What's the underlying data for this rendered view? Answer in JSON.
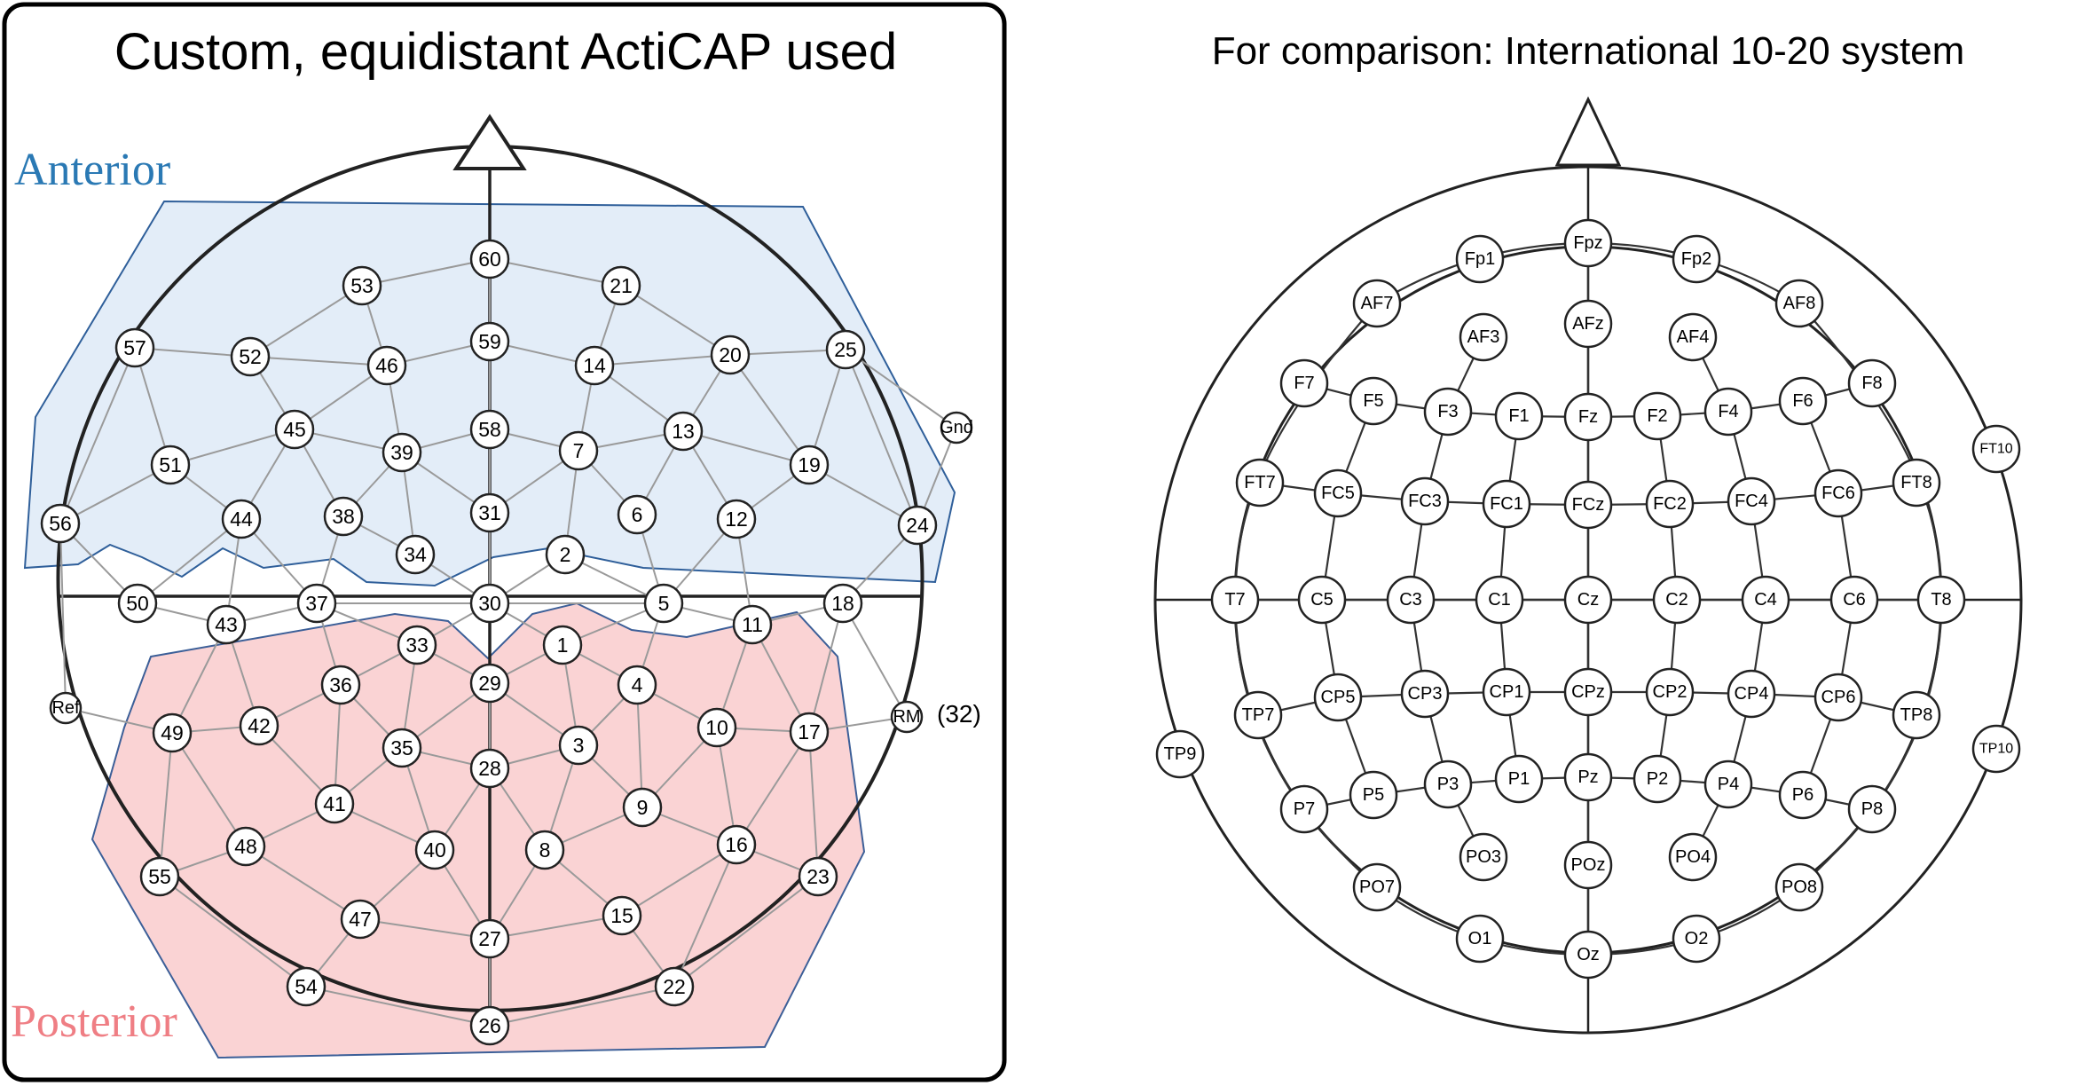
{
  "left_panel": {
    "title": "Custom, equidistant ActiCAP used",
    "anterior_label": "Anterior",
    "posterior_label": "Posterior",
    "rm_channel_note": "(32)",
    "electrodes": [
      {
        "id": "60"
      },
      {
        "id": "53"
      },
      {
        "id": "21"
      },
      {
        "id": "59"
      },
      {
        "id": "57"
      },
      {
        "id": "52"
      },
      {
        "id": "46"
      },
      {
        "id": "14"
      },
      {
        "id": "20"
      },
      {
        "id": "25"
      },
      {
        "id": "45"
      },
      {
        "id": "39"
      },
      {
        "id": "58"
      },
      {
        "id": "7"
      },
      {
        "id": "13"
      },
      {
        "id": "51"
      },
      {
        "id": "19"
      },
      {
        "id": "56"
      },
      {
        "id": "44"
      },
      {
        "id": "38"
      },
      {
        "id": "31"
      },
      {
        "id": "6"
      },
      {
        "id": "12"
      },
      {
        "id": "24"
      },
      {
        "id": "34"
      },
      {
        "id": "2"
      },
      {
        "id": "50"
      },
      {
        "id": "37"
      },
      {
        "id": "30"
      },
      {
        "id": "5"
      },
      {
        "id": "18"
      },
      {
        "id": "43"
      },
      {
        "id": "11"
      },
      {
        "id": "33"
      },
      {
        "id": "1"
      },
      {
        "id": "36"
      },
      {
        "id": "29"
      },
      {
        "id": "4"
      },
      {
        "id": "49"
      },
      {
        "id": "42"
      },
      {
        "id": "10"
      },
      {
        "id": "17"
      },
      {
        "id": "35"
      },
      {
        "id": "3"
      },
      {
        "id": "28"
      },
      {
        "id": "41"
      },
      {
        "id": "9"
      },
      {
        "id": "48"
      },
      {
        "id": "40"
      },
      {
        "id": "8"
      },
      {
        "id": "16"
      },
      {
        "id": "55"
      },
      {
        "id": "23"
      },
      {
        "id": "47"
      },
      {
        "id": "15"
      },
      {
        "id": "27"
      },
      {
        "id": "54"
      },
      {
        "id": "22"
      },
      {
        "id": "26"
      },
      {
        "id": "Gnd"
      },
      {
        "id": "Ref"
      },
      {
        "id": "RM"
      }
    ]
  },
  "right_panel": {
    "title": "For comparison: International 10-20 system",
    "electrodes": [
      {
        "id": "Fpz"
      },
      {
        "id": "Fp1"
      },
      {
        "id": "Fp2"
      },
      {
        "id": "AF7"
      },
      {
        "id": "AF8"
      },
      {
        "id": "AF3"
      },
      {
        "id": "AFz"
      },
      {
        "id": "AF4"
      },
      {
        "id": "F7"
      },
      {
        "id": "F5"
      },
      {
        "id": "F3"
      },
      {
        "id": "F1"
      },
      {
        "id": "Fz"
      },
      {
        "id": "F2"
      },
      {
        "id": "F4"
      },
      {
        "id": "F6"
      },
      {
        "id": "F8"
      },
      {
        "id": "FT7"
      },
      {
        "id": "FC5"
      },
      {
        "id": "FC3"
      },
      {
        "id": "FC1"
      },
      {
        "id": "FCz"
      },
      {
        "id": "FC2"
      },
      {
        "id": "FC4"
      },
      {
        "id": "FC6"
      },
      {
        "id": "FT8"
      },
      {
        "id": "FT10"
      },
      {
        "id": "T7"
      },
      {
        "id": "C5"
      },
      {
        "id": "C3"
      },
      {
        "id": "C1"
      },
      {
        "id": "Cz"
      },
      {
        "id": "C2"
      },
      {
        "id": "C4"
      },
      {
        "id": "C6"
      },
      {
        "id": "T8"
      },
      {
        "id": "TP7"
      },
      {
        "id": "CP5"
      },
      {
        "id": "CP3"
      },
      {
        "id": "CP1"
      },
      {
        "id": "CPz"
      },
      {
        "id": "CP2"
      },
      {
        "id": "CP4"
      },
      {
        "id": "CP6"
      },
      {
        "id": "TP8"
      },
      {
        "id": "TP9"
      },
      {
        "id": "TP10"
      },
      {
        "id": "P7"
      },
      {
        "id": "P5"
      },
      {
        "id": "P3"
      },
      {
        "id": "P1"
      },
      {
        "id": "Pz"
      },
      {
        "id": "P2"
      },
      {
        "id": "P4"
      },
      {
        "id": "P6"
      },
      {
        "id": "P8"
      },
      {
        "id": "PO3"
      },
      {
        "id": "POz"
      },
      {
        "id": "PO4"
      },
      {
        "id": "PO7"
      },
      {
        "id": "PO8"
      },
      {
        "id": "O1"
      },
      {
        "id": "Oz"
      },
      {
        "id": "O2"
      }
    ]
  }
}
